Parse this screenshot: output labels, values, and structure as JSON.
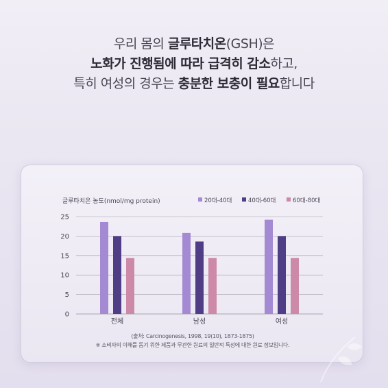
{
  "headline": {
    "line1": {
      "a": "우리 몸의 ",
      "b": "글루타치온",
      "c": "(GSH)은"
    },
    "line2": {
      "a": "노화가 진행됨에 따라 급격히 감소",
      "b": "하고,"
    },
    "line3": {
      "a": "특히 여성의 경우는 ",
      "b": "충분한 보충이 필요",
      "c": "합니다"
    }
  },
  "chart_data": {
    "type": "bar",
    "ylabel": "글루타치온 농도(nmol/mg protein)",
    "categories": [
      "전체",
      "남성",
      "여성"
    ],
    "ylim": [
      0,
      25
    ],
    "yticks": [
      0,
      5,
      10,
      15,
      20,
      25
    ],
    "grid": true,
    "legend_position": "top-right",
    "series": [
      {
        "name": "20대-40대",
        "color": "#a38ad3",
        "values": [
          23.6,
          20.8,
          24.2
        ]
      },
      {
        "name": "40대-60대",
        "color": "#4f3e86",
        "values": [
          20.0,
          18.6,
          20.0
        ]
      },
      {
        "name": "60대-80대",
        "color": "#cc8aa8",
        "values": [
          14.4,
          14.4,
          14.4
        ]
      }
    ]
  },
  "footnotes": {
    "source": "(출처: Carcinogenesis, 1998, 19(10), 1873-1875)",
    "disclaimer": "※ 소비자의 이해를 돕기 위한 제품과 무관한 원료의 일반적 특성에 대한 원료 정보입니다."
  }
}
